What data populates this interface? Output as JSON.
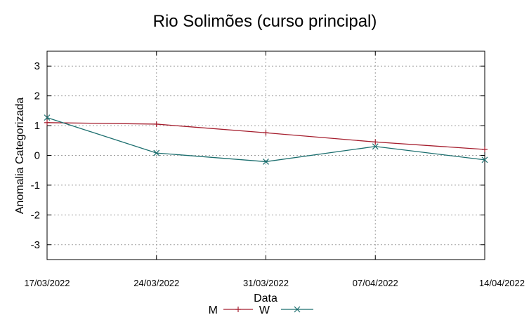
{
  "chart_data": {
    "type": "line",
    "title": "Rio Solimões (curso principal)",
    "xlabel": "Data",
    "ylabel": "Anomalia Categorizada",
    "x": [
      "17/03/2022",
      "24/03/2022",
      "31/03/2022",
      "07/04/2022",
      "14/04/2022"
    ],
    "ylim": [
      -3.5,
      3.5
    ],
    "yticks": [
      3,
      2,
      1,
      0,
      -1,
      -2,
      -3
    ],
    "grid": true,
    "legend_position": "bottom",
    "series": [
      {
        "name": "M",
        "color": "#a51d2d",
        "marker": "plus",
        "values": [
          1.1,
          1.05,
          0.76,
          0.45,
          0.2
        ]
      },
      {
        "name": "W",
        "color": "#1b6e6e",
        "marker": "cross",
        "values": [
          1.27,
          0.08,
          -0.21,
          0.3,
          -0.15
        ]
      }
    ]
  }
}
